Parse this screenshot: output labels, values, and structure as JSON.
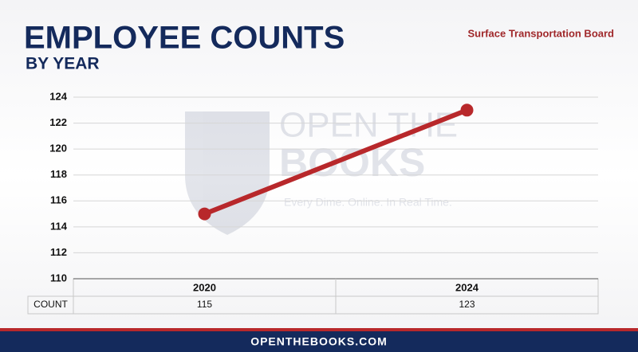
{
  "chart_data": {
    "type": "line",
    "title": "EMPLOYEE COUNTS",
    "subtitle": "BY YEAR",
    "agency": "Surface Transportation Board",
    "categories": [
      "2020",
      "2024"
    ],
    "series": [
      {
        "name": "COUNT",
        "color": "#b8282b",
        "values": [
          115,
          123
        ]
      }
    ],
    "ylim": [
      110,
      124
    ],
    "yticks": [
      110,
      112,
      114,
      116,
      118,
      120,
      122,
      124
    ],
    "grid": true
  },
  "watermark": {
    "line1": "OPEN THE",
    "line2": "BOOKS",
    "tagline": "Every Dime. Online. In Real Time."
  },
  "footer": "OPENTHEBOOKS.COM"
}
